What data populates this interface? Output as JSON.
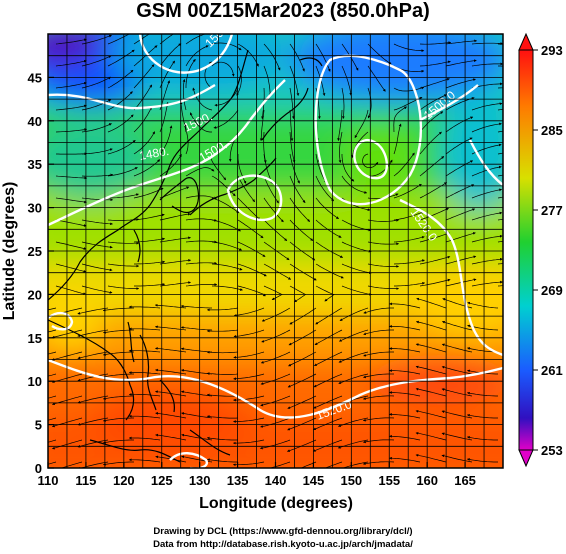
{
  "title": "GSM 00Z15Mar2023 (850.0hPa)",
  "xlabel": "Longitude (degrees)",
  "ylabel": "Latitude  (degrees)",
  "x_ticks": [
    "110",
    "115",
    "120",
    "125",
    "130",
    "135",
    "140",
    "145",
    "150",
    "155",
    "160",
    "165"
  ],
  "y_ticks": [
    "0",
    "5",
    "10",
    "15",
    "20",
    "25",
    "30",
    "35",
    "40",
    "45"
  ],
  "colorbar_ticks": [
    "293",
    "285",
    "277",
    "269",
    "261",
    "253"
  ],
  "contour_labels": [
    "1480.",
    "1500.",
    "1500.",
    "1520.0",
    "1520.0",
    "1500.0",
    "1500.0"
  ],
  "credits": {
    "line1": "Drawing by DCL (https://www.gfd-dennou.org/library/dcl/)",
    "line2": "Data from http://database.rish.kyoto-u.ac.jp/arch/jmadata/"
  },
  "chart_data": {
    "type": "heatmap",
    "field": "temperature (K)",
    "xlim": [
      110,
      170
    ],
    "ylim": [
      0,
      50
    ],
    "colorbar_range": [
      253,
      293
    ],
    "grid": "on",
    "grid_spacing_deg": 2.5,
    "contours": "geopotential height (m), white",
    "overlay": "streamlines with arrows"
  },
  "colors": {
    "cb_stops": [
      "#ff1a1a",
      "#ff8a00",
      "#ffd400",
      "#2de02d",
      "#00d8c8",
      "#1a6cff",
      "#3a00c8",
      "#e600c8"
    ]
  }
}
